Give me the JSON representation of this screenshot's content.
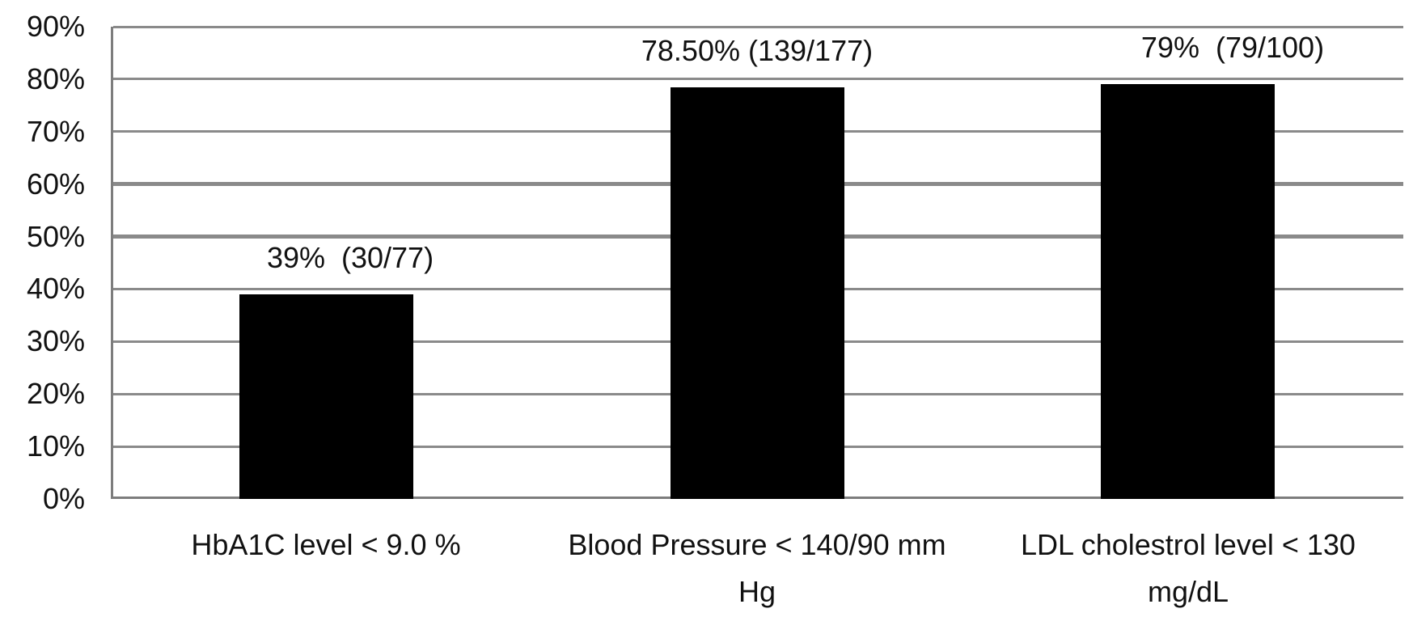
{
  "chart_data": {
    "type": "bar",
    "title": "",
    "xlabel": "",
    "ylabel": "",
    "categories": [
      "HbA1C level < 9.0 %",
      "Blood Pressure < 140/90 mm Hg",
      "LDL cholestrol level < 130 mg/dL"
    ],
    "category_label_lines": [
      [
        "HbA1C level < 9.0 %"
      ],
      [
        "Blood Pressure < 140/90 mm",
        "Hg"
      ],
      [
        "LDL cholestrol level < 130",
        "mg/dL"
      ]
    ],
    "values": [
      39,
      78.5,
      79
    ],
    "bar_labels": [
      "39%  (30/77)",
      "78.50% (139/177)",
      "79%  (79/100)"
    ],
    "ylim": [
      0,
      90
    ],
    "ytick_step": 10,
    "ytick_labels": [
      "0%",
      "10%",
      "20%",
      "30%",
      "40%",
      "50%",
      "60%",
      "70%",
      "80%",
      "90%"
    ],
    "grid": true,
    "legend": false,
    "bar_color": "#000000",
    "gridline_color": "#8a8a8a",
    "axis_color": "#7d7d7d",
    "text_color": "#111111",
    "layout_hints": {
      "thick_gridlines": [
        50,
        60
      ],
      "bar_label_dx": [
        30,
        0,
        55
      ]
    }
  }
}
